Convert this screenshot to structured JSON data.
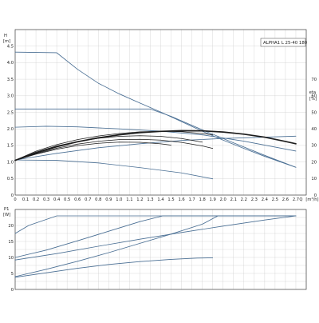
{
  "legend_label": "ALPHA1 L 25-40 180",
  "chart_data": [
    {
      "type": "line",
      "panel": "head",
      "xlabel": "Q [m³/h]",
      "ylabel": "H [m]",
      "y2label": "eta [%]",
      "xlim": [
        0,
        2.8
      ],
      "ylim": [
        0,
        5
      ],
      "y2lim": [
        0,
        100
      ],
      "grid": true,
      "legend": "top-right",
      "x_ticks": [
        "0",
        "0.1",
        "0.2",
        "0.3",
        "0.4",
        "0.5",
        "0.6",
        "0.7",
        "0.8",
        "0.9",
        "1.0",
        "1.1",
        "1.2",
        "1.3",
        "1.4",
        "1.5",
        "1.6",
        "1.7",
        "1.8",
        "1.9",
        "2.0",
        "2.1",
        "2.2",
        "2.3",
        "2.4",
        "2.5",
        "2.6",
        "2.7"
      ],
      "y_ticks": [
        "0",
        "0.5",
        "1.0",
        "1.5",
        "2.0",
        "2.5",
        "3.0",
        "3.5",
        "4.0",
        "4.5"
      ],
      "y2_ticks": [
        "0",
        "10",
        "20",
        "30",
        "40",
        "50",
        "60",
        "70"
      ],
      "series": [
        {
          "role": "head",
          "x": [
            0,
            0.4,
            0.6,
            0.8,
            1.0,
            1.2,
            1.4,
            1.6,
            1.8,
            2.0,
            2.2,
            2.4,
            2.6,
            2.7
          ],
          "y": [
            4.32,
            4.3,
            3.8,
            3.38,
            3.06,
            2.78,
            2.51,
            2.22,
            1.93,
            1.66,
            1.41,
            1.17,
            0.95,
            0.84
          ]
        },
        {
          "role": "head",
          "x": [
            0,
            1.3,
            1.5,
            1.8,
            2.1,
            2.4,
            2.7
          ],
          "y": [
            2.6,
            2.6,
            2.38,
            1.97,
            1.58,
            1.2,
            0.84
          ]
        },
        {
          "role": "head",
          "x": [
            0,
            0.3,
            0.6,
            1.0,
            1.4,
            1.8,
            2.2,
            2.6,
            2.7
          ],
          "y": [
            2.05,
            2.08,
            2.06,
            2.0,
            1.93,
            1.82,
            1.63,
            1.39,
            1.33
          ]
        },
        {
          "role": "head",
          "x": [
            0,
            0.4,
            0.8,
            1.2,
            1.6,
            1.9
          ],
          "y": [
            1.06,
            1.05,
            0.97,
            0.83,
            0.67,
            0.49
          ]
        },
        {
          "role": "head",
          "x": [
            0,
            0.4,
            0.8,
            1.2,
            1.6,
            2.0,
            2.4,
            2.7
          ],
          "y": [
            1.06,
            1.26,
            1.43,
            1.55,
            1.65,
            1.71,
            1.75,
            1.78
          ]
        },
        {
          "role": "eta",
          "x": [
            0,
            0.2,
            0.4,
            0.6,
            0.8,
            1.0,
            1.2,
            1.4,
            1.6,
            1.8,
            2.0,
            2.2,
            2.4,
            2.6,
            2.7
          ],
          "y": [
            21,
            25.5,
            29.2,
            32.2,
            34.6,
            36.4,
            37.7,
            38.5,
            38.9,
            38.8,
            38.1,
            36.8,
            35.0,
            32.4,
            31.0
          ]
        },
        {
          "role": "eta",
          "x": [
            0,
            0.2,
            0.4,
            0.6,
            0.8,
            1.0,
            1.2,
            1.4,
            1.6,
            1.8,
            1.9
          ],
          "y": [
            21,
            26.5,
            30.5,
            33.5,
            35.7,
            37.2,
            38.2,
            38.6,
            38.3,
            37.2,
            36.4
          ]
        },
        {
          "role": "eta",
          "x": [
            0,
            0.2,
            0.4,
            0.6,
            0.8,
            1.0,
            1.2,
            1.4,
            1.6,
            1.8
          ],
          "y": [
            21,
            26,
            29.7,
            32.4,
            34.3,
            35.5,
            35.9,
            35.5,
            34.2,
            32.0
          ]
        },
        {
          "role": "eta",
          "x": [
            0,
            0.2,
            0.4,
            0.6,
            0.8,
            1.0,
            1.2,
            1.4,
            1.6,
            1.8,
            1.9
          ],
          "y": [
            21,
            25,
            28.3,
            30.8,
            32.5,
            33.5,
            33.7,
            33.2,
            31.8,
            29.7,
            28.2
          ]
        },
        {
          "role": "eta",
          "x": [
            0,
            0.2,
            0.4,
            0.6,
            0.8,
            1.0,
            1.2,
            1.4,
            1.5
          ],
          "y": [
            21,
            24.7,
            27.7,
            29.9,
            31.3,
            32.0,
            31.9,
            31.0,
            30.2
          ]
        }
      ]
    },
    {
      "type": "line",
      "panel": "power",
      "ylabel": "P1 [W]",
      "xlim": [
        0,
        2.8
      ],
      "ylim": [
        0,
        25
      ],
      "grid": true,
      "y_ticks": [
        "0",
        "5",
        "10",
        "15",
        "20"
      ],
      "series": [
        {
          "x": [
            0,
            0.13,
            0.4,
            2.7
          ],
          "y": [
            17.5,
            20,
            23,
            23
          ]
        },
        {
          "x": [
            0,
            0.3,
            0.6,
            0.9,
            1.2,
            1.42,
            2.7
          ],
          "y": [
            10,
            12.3,
            15.2,
            18.2,
            21.2,
            23,
            23
          ]
        },
        {
          "x": [
            0,
            0.3,
            0.6,
            0.9,
            1.2,
            1.5,
            1.8,
            1.95,
            2.7
          ],
          "y": [
            4,
            6.3,
            8.8,
            11.5,
            14.4,
            17.3,
            20.4,
            23,
            23
          ]
        },
        {
          "x": [
            0,
            0.4,
            0.8,
            1.2,
            1.6,
            2.0,
            2.4,
            2.7
          ],
          "y": [
            9.2,
            11.2,
            13.5,
            15.7,
            17.8,
            19.8,
            21.7,
            23
          ]
        },
        {
          "x": [
            0,
            0.3,
            0.6,
            0.9,
            1.2,
            1.5,
            1.75,
            1.9
          ],
          "y": [
            3.8,
            5.2,
            6.6,
            7.8,
            8.7,
            9.4,
            9.8,
            9.9
          ]
        }
      ]
    }
  ]
}
